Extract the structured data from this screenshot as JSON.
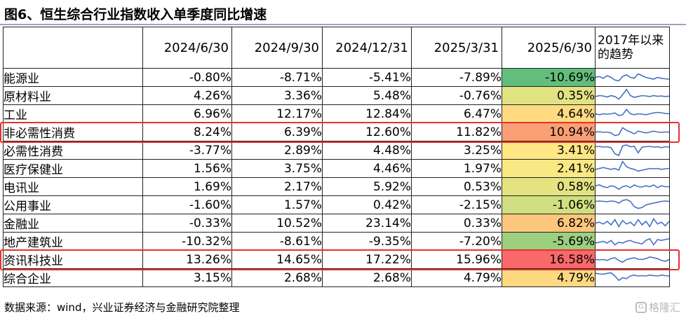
{
  "title": "图6、恒生综合行业指数收入单季度同比增速",
  "source": "数据来源：wind，兴业证券经济与金融研究院整理",
  "watermark": "格隆汇",
  "chart_data": {
    "type": "table",
    "columns": [
      "2024/6/30",
      "2024/9/30",
      "2024/12/31",
      "2025/3/31",
      "2025/6/30",
      "2017年以来的趋势"
    ],
    "rows": [
      {
        "name": "能源业",
        "values": [
          "-0.80%",
          "-8.71%",
          "-5.41%",
          "-7.89%",
          "-10.69%"
        ],
        "last": -10.69,
        "trend": [
          0.5,
          0.55,
          0.45,
          0.6,
          0.5,
          0.35,
          0.3,
          0.55,
          0.65,
          0.5,
          0.45,
          0.7,
          0.6,
          0.5,
          0.45,
          0.4,
          0.5,
          0.45,
          0.42,
          0.4
        ],
        "highlighted": false
      },
      {
        "name": "原材料业",
        "values": [
          "4.26%",
          "3.36%",
          "5.48%",
          "-0.76%",
          "0.35%"
        ],
        "last": 0.35,
        "trend": [
          0.45,
          0.5,
          0.48,
          0.42,
          0.5,
          0.45,
          0.3,
          0.55,
          0.85,
          0.5,
          0.4,
          0.45,
          0.5,
          0.48,
          0.45,
          0.5,
          0.46,
          0.48,
          0.45,
          0.47
        ],
        "highlighted": false
      },
      {
        "name": "工业",
        "values": [
          "6.96%",
          "12.17%",
          "12.84%",
          "6.47%",
          "4.64%"
        ],
        "last": 4.64,
        "trend": [
          0.5,
          0.45,
          0.5,
          0.48,
          0.5,
          0.55,
          0.4,
          0.45,
          0.75,
          0.5,
          0.45,
          0.5,
          0.48,
          0.45,
          0.5,
          0.55,
          0.58,
          0.56,
          0.52,
          0.5
        ],
        "highlighted": false
      },
      {
        "name": "非必需性消费",
        "values": [
          "8.24%",
          "6.39%",
          "12.60%",
          "11.82%",
          "10.94%"
        ],
        "last": 10.94,
        "trend": [
          0.5,
          0.52,
          0.48,
          0.5,
          0.45,
          0.3,
          0.35,
          0.75,
          0.6,
          0.5,
          0.4,
          0.55,
          0.5,
          0.45,
          0.5,
          0.55,
          0.5,
          0.48,
          0.5,
          0.5
        ],
        "highlighted": true
      },
      {
        "name": "必需性消费",
        "values": [
          "-3.77%",
          "2.89%",
          "4.48%",
          "3.25%",
          "3.41%"
        ],
        "last": 3.41,
        "trend": [
          0.7,
          0.72,
          0.68,
          0.7,
          0.65,
          0.3,
          0.2,
          0.75,
          0.8,
          0.7,
          0.72,
          0.35,
          0.68,
          0.7,
          0.72,
          0.68,
          0.7,
          0.65,
          0.7,
          0.68
        ],
        "highlighted": false
      },
      {
        "name": "医疗保健业",
        "values": [
          "1.56%",
          "3.75%",
          "4.46%",
          "1.97%",
          "2.41%"
        ],
        "last": 2.41,
        "trend": [
          0.45,
          0.5,
          0.55,
          0.5,
          0.45,
          0.5,
          0.4,
          0.9,
          0.6,
          0.5,
          0.45,
          0.35,
          0.4,
          0.45,
          0.5,
          0.48,
          0.5,
          0.45,
          0.48,
          0.5
        ],
        "highlighted": false
      },
      {
        "name": "电讯业",
        "values": [
          "1.69%",
          "2.17%",
          "5.92%",
          "0.53%",
          "0.58%"
        ],
        "last": 0.58,
        "trend": [
          0.55,
          0.6,
          0.5,
          0.45,
          0.55,
          0.5,
          0.35,
          0.5,
          0.55,
          0.45,
          0.6,
          0.5,
          0.48,
          0.55,
          0.5,
          0.6,
          0.45,
          0.55,
          0.5,
          0.5
        ],
        "highlighted": false
      },
      {
        "name": "公用事业",
        "values": [
          "-1.60%",
          "1.57%",
          "0.42%",
          "-2.15%",
          "-1.06%"
        ],
        "last": -1.06,
        "trend": [
          0.7,
          0.72,
          0.7,
          0.68,
          0.72,
          0.7,
          0.6,
          0.75,
          0.8,
          0.7,
          0.4,
          0.3,
          0.35,
          0.5,
          0.55,
          0.6,
          0.65,
          0.7,
          0.72,
          0.7
        ],
        "highlighted": false
      },
      {
        "name": "金融业",
        "values": [
          "-0.33%",
          "10.52%",
          "23.14%",
          "0.33%",
          "6.82%"
        ],
        "last": 6.82,
        "trend": [
          0.5,
          0.55,
          0.45,
          0.6,
          0.4,
          0.7,
          0.3,
          0.65,
          0.45,
          0.55,
          0.35,
          0.7,
          0.4,
          0.6,
          0.3,
          0.75,
          0.45,
          0.55,
          0.35,
          0.6
        ],
        "highlighted": false
      },
      {
        "name": "地产建筑业",
        "values": [
          "-10.32%",
          "-8.61%",
          "-9.35%",
          "-7.20%",
          "-5.69%"
        ],
        "last": -5.69,
        "trend": [
          0.4,
          0.45,
          0.5,
          0.4,
          0.55,
          0.3,
          0.45,
          0.4,
          0.5,
          0.55,
          0.45,
          0.4,
          0.35,
          0.55,
          0.65,
          0.3,
          0.6,
          0.55,
          0.6,
          0.65
        ],
        "highlighted": false
      },
      {
        "name": "资讯科技业",
        "values": [
          "13.26%",
          "14.65%",
          "17.22%",
          "15.96%",
          "16.58%"
        ],
        "last": 16.58,
        "trend": [
          0.5,
          0.48,
          0.5,
          0.45,
          0.55,
          0.6,
          0.45,
          0.35,
          0.5,
          0.55,
          0.6,
          0.52,
          0.5,
          0.55,
          0.65,
          0.6,
          0.55,
          0.45,
          0.4,
          0.5
        ],
        "highlighted": true
      },
      {
        "name": "综合企业",
        "values": [
          "3.15%",
          "2.68%",
          "2.68%",
          "4.79%",
          "4.79%"
        ],
        "last": 4.79,
        "trend": [
          0.75,
          0.72,
          0.7,
          0.75,
          0.78,
          0.6,
          0.35,
          0.5,
          0.45,
          0.6,
          0.65,
          0.6,
          0.62,
          0.6,
          0.65,
          0.62,
          0.6,
          0.65,
          0.62,
          0.6
        ],
        "highlighted": false
      }
    ],
    "heat_colors": {
      "low": "#63be7b",
      "mid": "#ffeb84",
      "high": "#f8696b",
      "min": -10.69,
      "max": 16.58
    },
    "highlight_color": "#e8302c",
    "sparkline_color": "#4472c4"
  }
}
